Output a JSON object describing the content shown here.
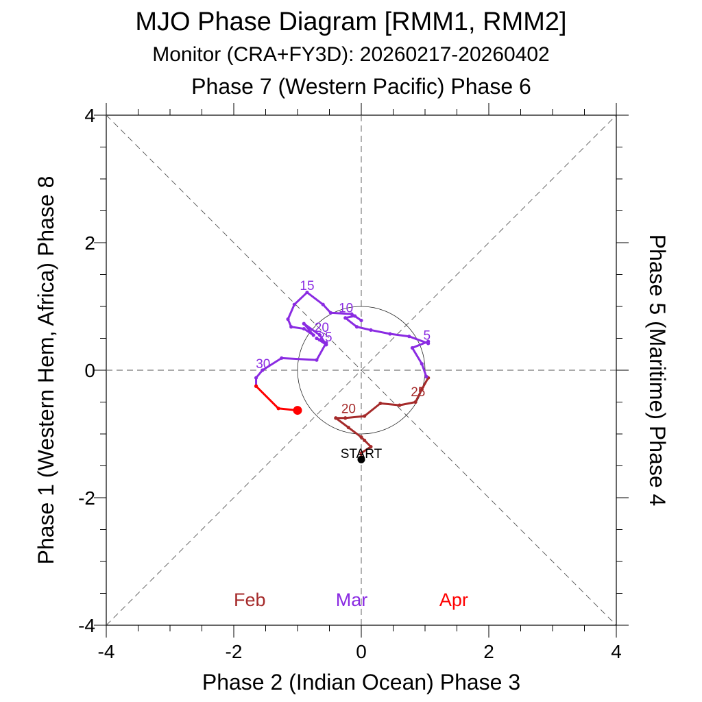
{
  "chart_data": {
    "type": "line",
    "title": "MJO Phase Diagram [RMM1, RMM2]",
    "subtitle": "Monitor (CRA+FY3D): 20260217-20260402",
    "top_label": "Phase 7 (Western Pacific) Phase 6",
    "xlabel": "Phase 2 (Indian Ocean) Phase 3",
    "ylabel_left": "Phase 1 (Western Hem, Africa) Phase 8",
    "ylabel_right": "Phase 5 (Maritime) Phase 4",
    "xlim": [
      -4,
      4
    ],
    "ylim": [
      -4,
      4
    ],
    "x_ticks": [
      -4,
      -2,
      0,
      2,
      4
    ],
    "y_ticks": [
      -4,
      -2,
      0,
      2,
      4
    ],
    "x_tick_labels": [
      "-4",
      "-2",
      "0",
      "2",
      "4"
    ],
    "y_tick_labels": [
      "-4",
      "-2",
      "0",
      "2",
      "4"
    ],
    "unit_circle_radius": 1,
    "start_label": "START",
    "months": [
      {
        "name": "Feb",
        "label": "Feb",
        "color": "#a52a2a",
        "x": -1.75
      },
      {
        "name": "Mar",
        "label": "Mar",
        "color": "#8a2be2",
        "x": -0.15
      },
      {
        "name": "Apr",
        "label": "Apr",
        "color": "#ff0000",
        "x": 1.45
      }
    ],
    "series": [
      {
        "name": "Feb",
        "color": "#a52a2a",
        "points": [
          [
            0.0,
            -1.4
          ],
          [
            0.0,
            -1.3
          ],
          [
            0.15,
            -1.2
          ],
          [
            0.05,
            -1.1
          ],
          [
            0.0,
            -1.05
          ],
          [
            -0.2,
            -0.9
          ],
          [
            -0.4,
            -0.75
          ],
          [
            -0.25,
            -0.75
          ],
          [
            0.05,
            -0.72
          ],
          [
            0.3,
            -0.52
          ],
          [
            0.6,
            -0.55
          ],
          [
            0.85,
            -0.5
          ],
          [
            0.95,
            -0.3
          ],
          [
            1.05,
            -0.12
          ],
          [
            1.02,
            -0.1
          ]
        ],
        "labels": [
          {
            "text": "20",
            "x": -0.2,
            "y": -0.67
          },
          {
            "text": "25",
            "x": 0.89,
            "y": -0.41
          }
        ]
      },
      {
        "name": "Mar",
        "color": "#8a2be2",
        "points": [
          [
            1.02,
            -0.1
          ],
          [
            0.95,
            0.1
          ],
          [
            0.8,
            0.35
          ],
          [
            1.05,
            0.45
          ],
          [
            1.05,
            0.42
          ],
          [
            0.75,
            0.53
          ],
          [
            0.45,
            0.57
          ],
          [
            0.15,
            0.63
          ],
          [
            -0.07,
            0.68
          ],
          [
            -0.25,
            0.82
          ],
          [
            -0.1,
            0.85
          ],
          [
            0.0,
            0.78
          ],
          [
            -0.15,
            0.88
          ],
          [
            -0.48,
            0.9
          ],
          [
            -0.6,
            1.03
          ],
          [
            -0.85,
            1.22
          ],
          [
            -1.05,
            1.03
          ],
          [
            -1.15,
            0.8
          ],
          [
            -1.1,
            0.68
          ],
          [
            -0.9,
            0.65
          ],
          [
            -0.75,
            0.55
          ],
          [
            -0.9,
            0.73
          ],
          [
            -0.65,
            0.55
          ],
          [
            -0.55,
            0.4
          ],
          [
            -0.7,
            0.5
          ],
          [
            -0.55,
            0.43
          ],
          [
            -0.7,
            0.16
          ],
          [
            -1.25,
            0.19
          ],
          [
            -1.55,
            0.0
          ],
          [
            -1.65,
            -0.12
          ],
          [
            -1.65,
            -0.25
          ]
        ],
        "labels": [
          {
            "text": "5",
            "x": 1.03,
            "y": 0.48
          },
          {
            "text": "10",
            "x": -0.24,
            "y": 0.91
          },
          {
            "text": "15",
            "x": -0.85,
            "y": 1.26
          },
          {
            "text": "20",
            "x": -0.62,
            "y": 0.6
          },
          {
            "text": "25",
            "x": -0.57,
            "y": 0.45
          },
          {
            "text": "30",
            "x": -1.54,
            "y": 0.03
          }
        ]
      },
      {
        "name": "Apr",
        "color": "#ff0000",
        "points": [
          [
            -1.65,
            -0.25
          ],
          [
            -1.3,
            -0.6
          ],
          [
            -1.0,
            -0.63
          ]
        ],
        "labels": []
      }
    ],
    "start_point": [
      0.0,
      -1.4
    ],
    "end_point": [
      -1.0,
      -0.63
    ]
  }
}
